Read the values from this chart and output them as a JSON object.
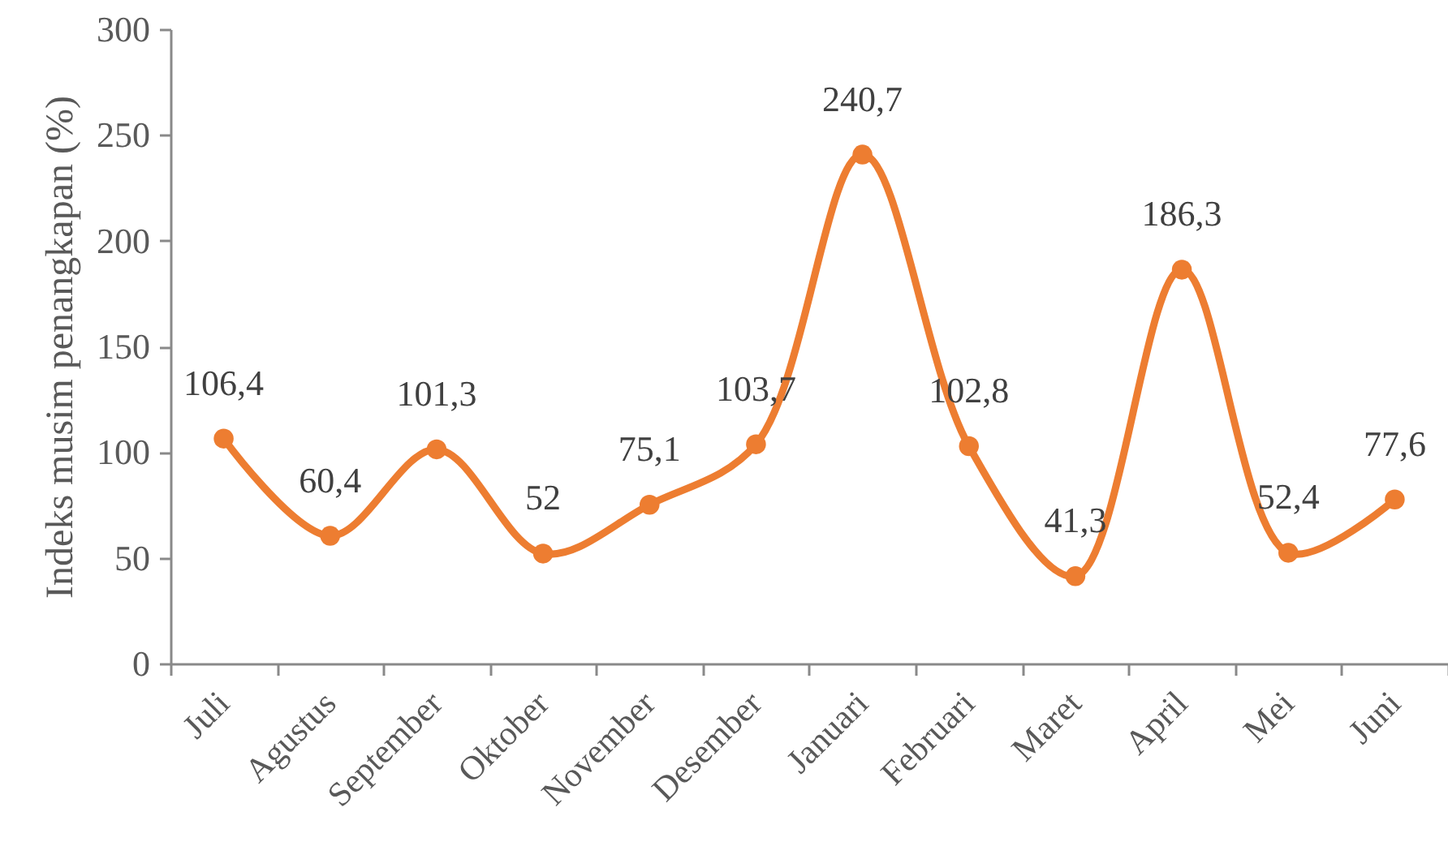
{
  "chart_data": {
    "type": "line",
    "ylabel": "Indeks musim penangkapan (%)",
    "categories": [
      "Juli",
      "Agustus",
      "September",
      "Oktober",
      "November",
      "Desember",
      "Januari",
      "Februari",
      "Maret",
      "April",
      "Mei",
      "Juni"
    ],
    "series": [
      {
        "color": "#ed7d31",
        "values": [
          106.4,
          60.4,
          101.3,
          52,
          75.1,
          103.7,
          240.7,
          102.8,
          41.3,
          186.3,
          52.4,
          77.6
        ],
        "value_labels": [
          "106,4",
          "60,4",
          "101,3",
          "52",
          "75,1",
          "103,7",
          "240,7",
          "102,8",
          "41,3",
          "186,3",
          "52,4",
          "77,6"
        ]
      }
    ],
    "ylim": [
      0,
      300
    ],
    "yticks": [
      0,
      50,
      100,
      150,
      200,
      250,
      300
    ],
    "marker": "circle",
    "line_style": "solid",
    "grid": false
  }
}
